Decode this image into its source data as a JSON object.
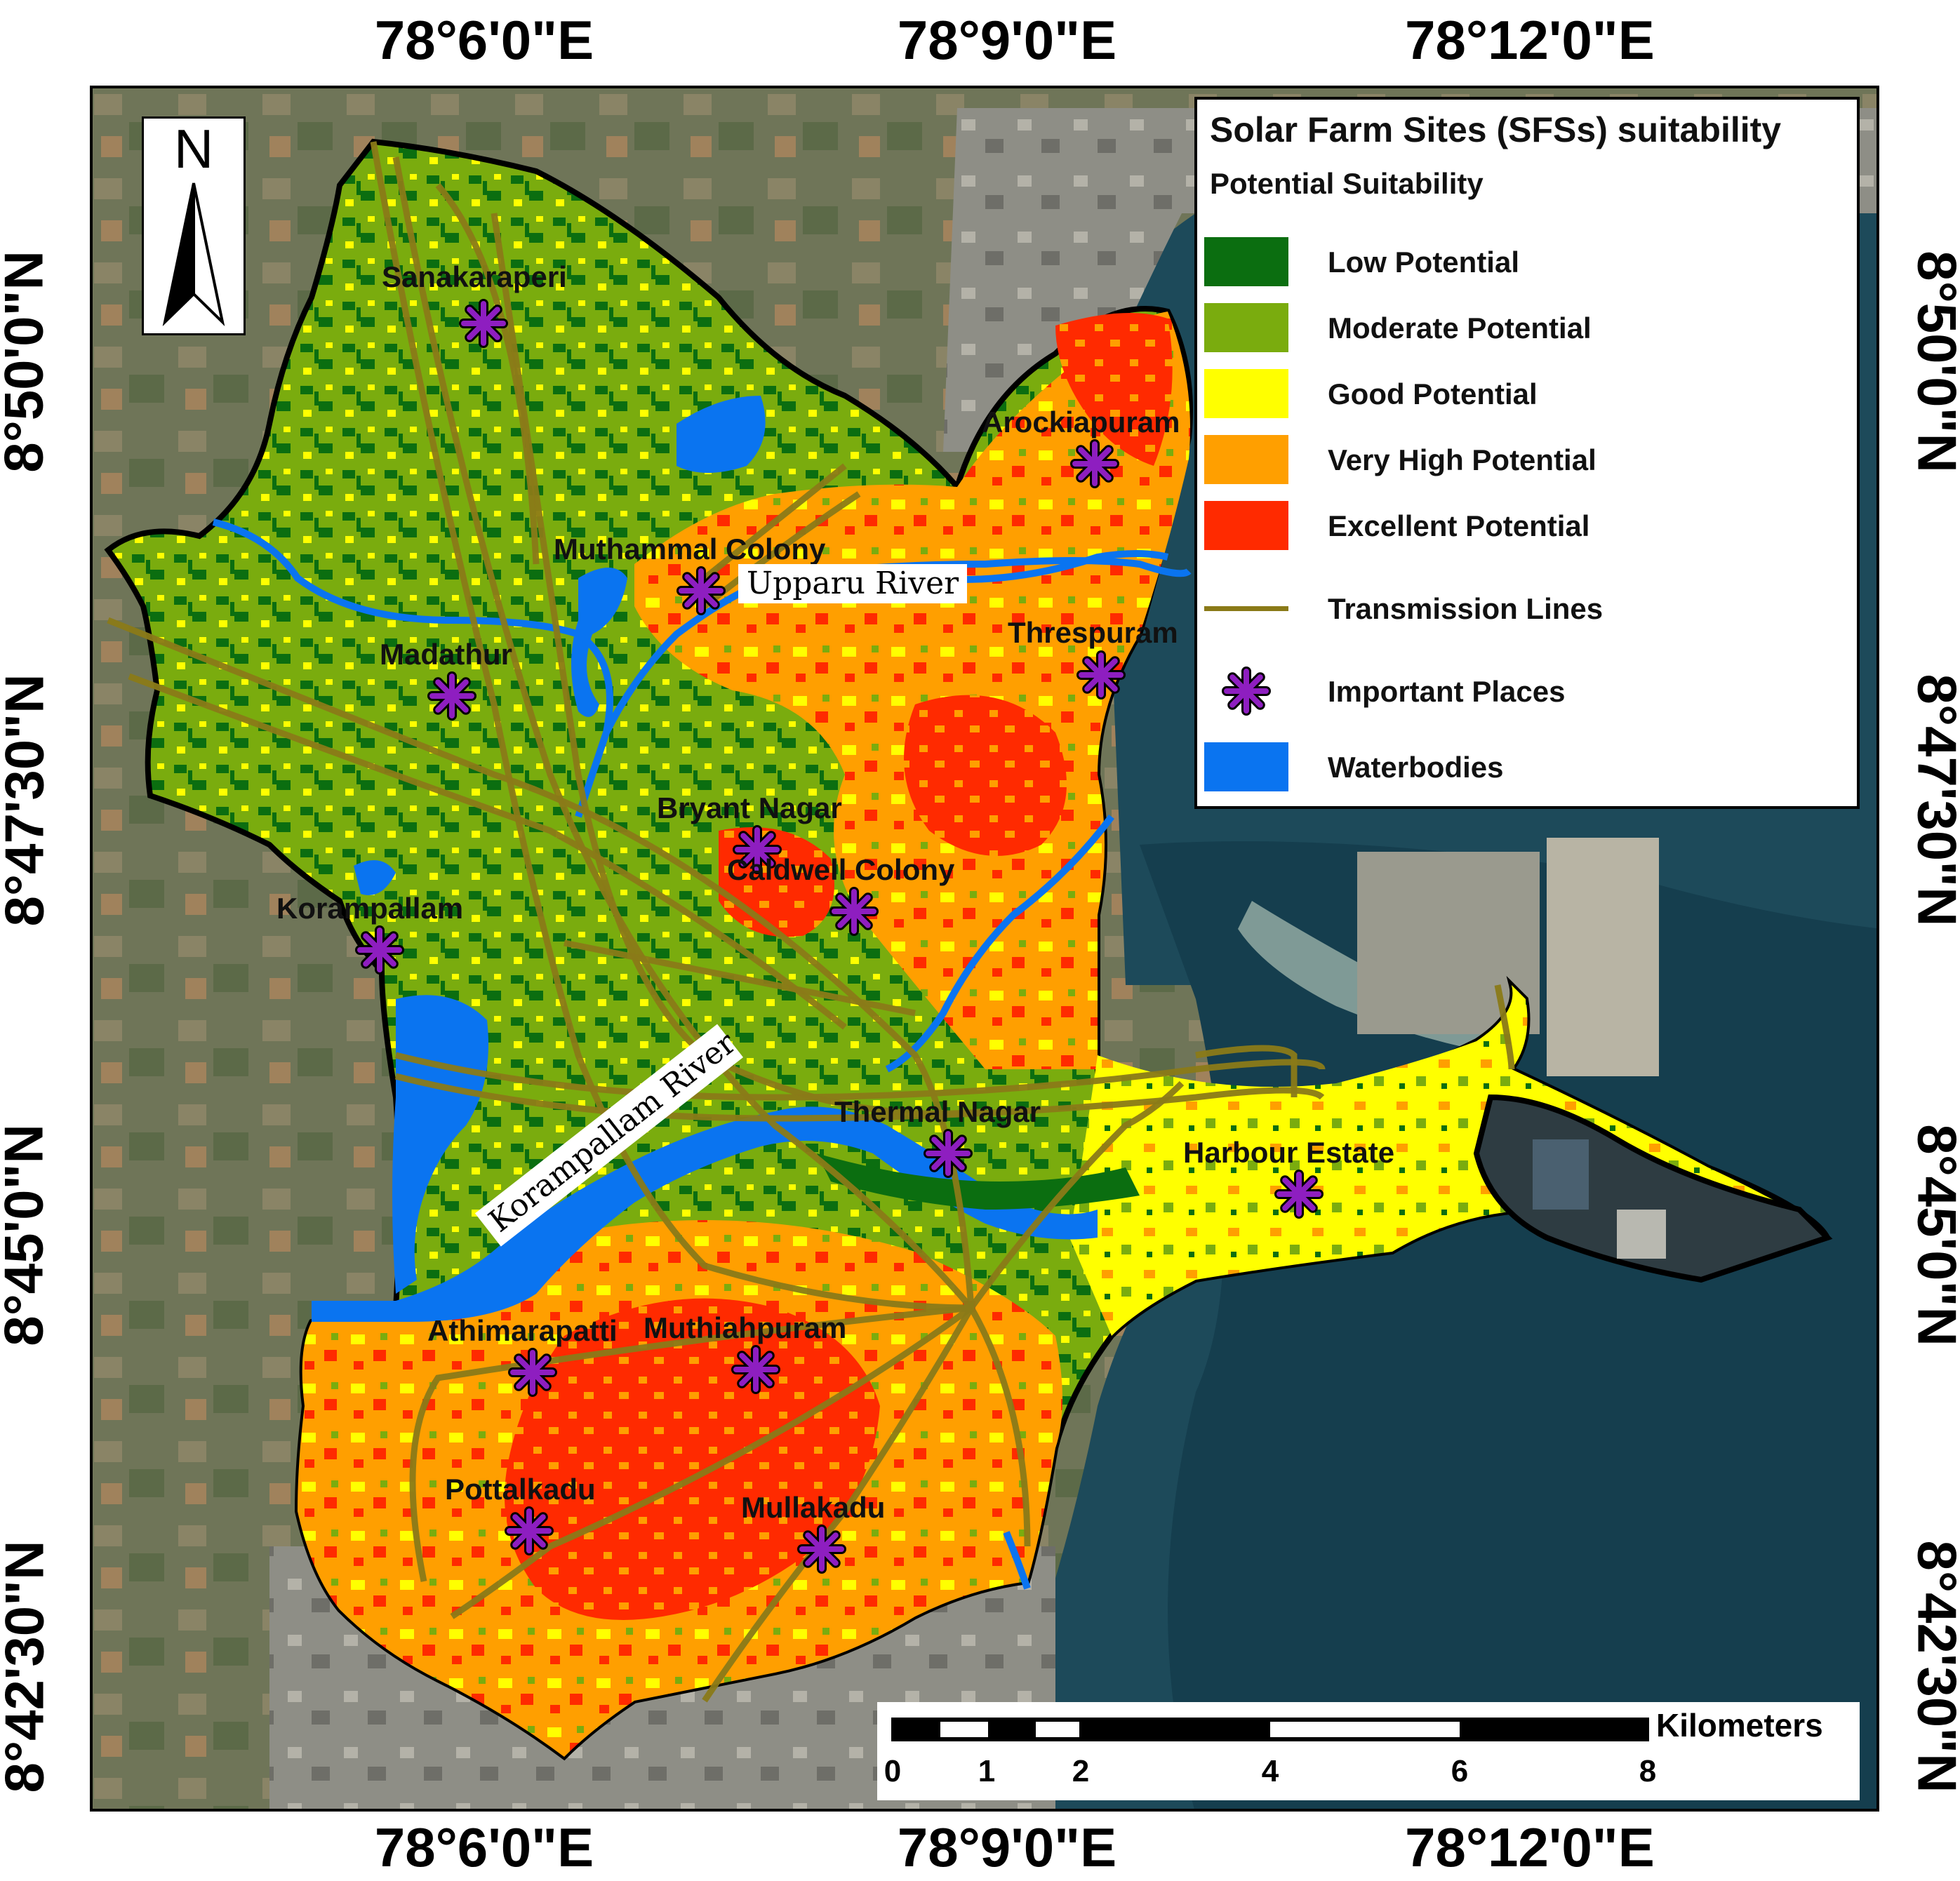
{
  "axes": {
    "top_ticks": [
      "78°6'0\"E",
      "78°9'0\"E",
      "78°12'0\"E"
    ],
    "bottom_ticks": [
      "78°6'0\"E",
      "78°9'0\"E",
      "78°12'0\"E"
    ],
    "left_ticks": [
      "8°50'0\"N",
      "8°47'30\"N",
      "8°45'0\"N",
      "8°42'30\"N"
    ],
    "right_ticks": [
      "8°50'0\"N",
      "8°47'30\"N",
      "8°45'0\"N",
      "8°42'30\"N"
    ]
  },
  "legend": {
    "title": "Solar Farm Sites (SFSs) suitability",
    "subtitle": "Potential Suitability",
    "classes": [
      {
        "label": "Low Potential",
        "color": "#0b6e10"
      },
      {
        "label": "Moderate Potential",
        "color": "#7aac0e"
      },
      {
        "label": "Good Potential",
        "color": "#ffff00"
      },
      {
        "label": "Very High Potential",
        "color": "#ff9f00"
      },
      {
        "label": "Excellent Potential",
        "color": "#ff2a00"
      }
    ],
    "transmission_label": "Transmission Lines",
    "transmission_color": "#8a7a18",
    "places_label": "Important Places",
    "places_color": "#8e1ec0",
    "water_label": "Waterbodies",
    "water_color": "#0a74f0"
  },
  "north_arrow": {
    "label": "N"
  },
  "scale_bar": {
    "unit": "Kilometers",
    "labels": [
      "0",
      "1",
      "2",
      "4",
      "6",
      "8"
    ]
  },
  "places": [
    {
      "name": "Sanakaraperi"
    },
    {
      "name": "Arockiapuram"
    },
    {
      "name": "Muthammal Colony"
    },
    {
      "name": "Threspuram"
    },
    {
      "name": "Madathur"
    },
    {
      "name": "Bryant Nagar"
    },
    {
      "name": "Caldwell Colony"
    },
    {
      "name": "Korampallam"
    },
    {
      "name": "Thermal Nagar"
    },
    {
      "name": "Harbour Estate"
    },
    {
      "name": "Athimarapatti"
    },
    {
      "name": "Muthiahpuram"
    },
    {
      "name": "Pottalkadu"
    },
    {
      "name": "Mullakadu"
    }
  ],
  "rivers": [
    {
      "name": "Upparu River"
    },
    {
      "name": "Korampallam River"
    }
  ]
}
